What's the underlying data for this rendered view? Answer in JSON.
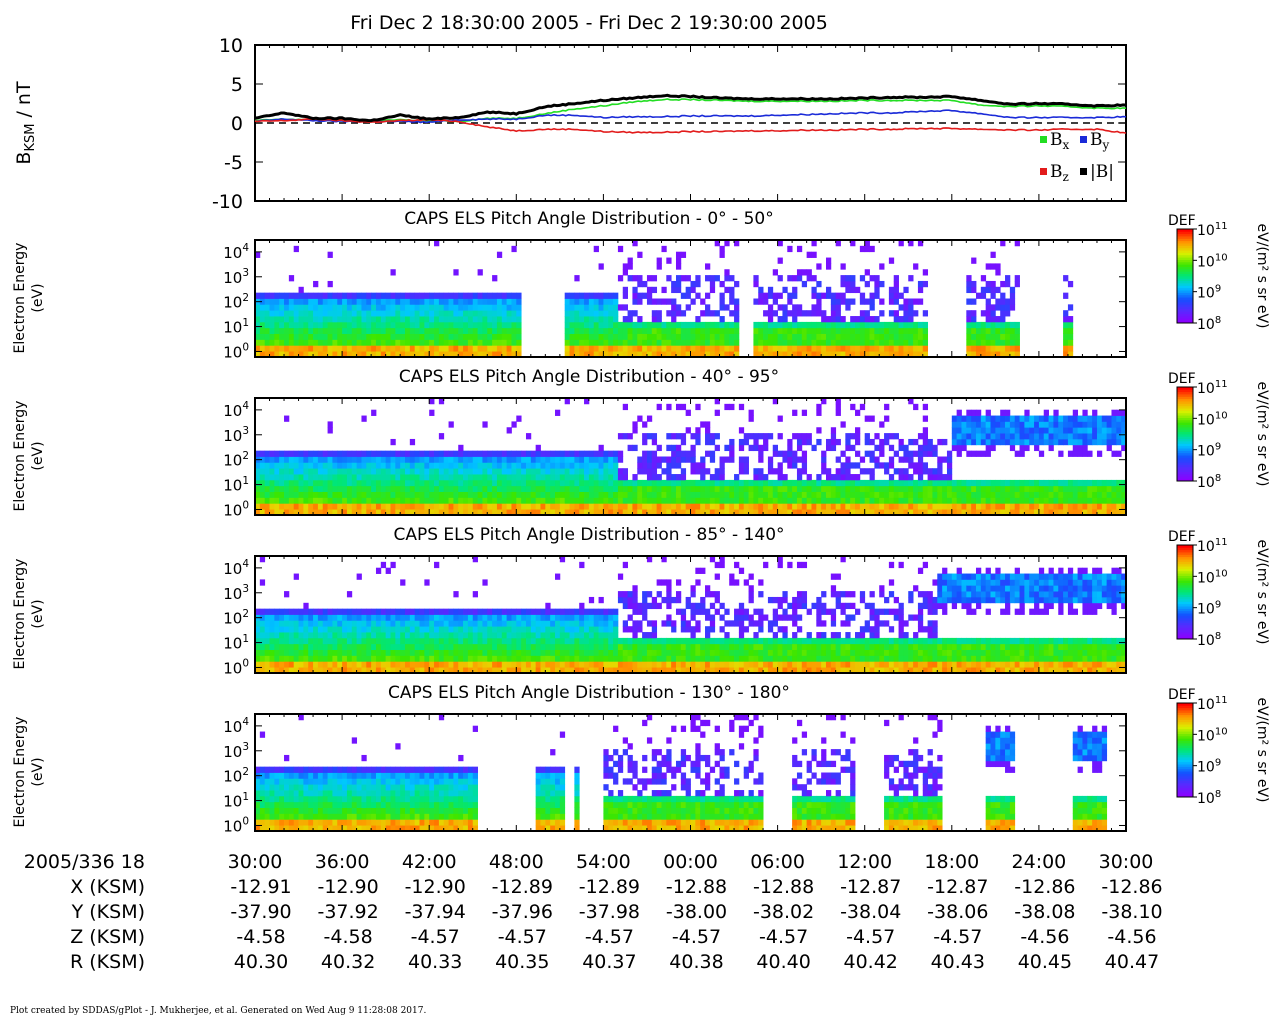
{
  "page_title": "Fri Dec 2 18:30:00 2005 - Fri Dec 2 19:30:00 2005",
  "footer_text": "Plot created by SDDAS/gPlot - J. Mukherjee, et al.  Generated on Wed Aug 9 11:28:08 2017.",
  "colors": {
    "bx": "#22dd22",
    "by": "#1a2ad8",
    "bz": "#e21b1b",
    "bmag": "#000000"
  },
  "chart_data": [
    {
      "type": "line",
      "ylabel_main": "B",
      "ylabel_sub": "KSM",
      "ylabel_unit": " / nT",
      "ylim": [
        -10,
        10
      ],
      "y_ticks": [
        "10",
        "5",
        "0",
        "-5",
        "-10"
      ],
      "y_tick_values": [
        10,
        5,
        0,
        -5,
        -10
      ],
      "x": [
        0,
        2,
        4,
        6,
        8,
        10,
        12,
        14,
        16,
        18,
        20,
        22,
        24,
        26,
        28,
        30,
        32,
        34,
        36,
        38,
        40,
        42,
        44,
        46,
        48,
        50,
        52,
        54,
        56,
        58,
        60
      ],
      "xlim": [
        0,
        60
      ],
      "reference_line_y": 0,
      "legend": [
        {
          "sym": "B",
          "sub": "x",
          "color_key": "bx"
        },
        {
          "sym": "B",
          "sub": "y",
          "color_key": "by"
        },
        {
          "sym": "B",
          "sub": "z",
          "color_key": "bz"
        },
        {
          "sym": "|B|",
          "sub": "",
          "color_key": "bmag"
        }
      ],
      "series": [
        {
          "color_key": "bx",
          "values": [
            0.3,
            0.5,
            0.4,
            0.4,
            0.3,
            0.4,
            0.3,
            0.2,
            0.6,
            0.6,
            1.2,
            1.8,
            2.2,
            2.7,
            3.0,
            3.0,
            2.9,
            2.8,
            2.8,
            2.8,
            2.8,
            2.9,
            2.9,
            2.9,
            2.9,
            2.3,
            2.1,
            2.2,
            2.1,
            1.9,
            1.9
          ]
        },
        {
          "color_key": "by",
          "values": [
            0.2,
            0.5,
            0.3,
            0.2,
            0.2,
            0.2,
            0.1,
            0.4,
            0.5,
            0.5,
            1.0,
            1.0,
            0.7,
            0.8,
            0.8,
            0.9,
            0.9,
            0.9,
            1.0,
            1.1,
            1.2,
            1.3,
            1.3,
            1.5,
            1.6,
            1.2,
            0.7,
            0.7,
            0.7,
            0.7,
            0.8
          ]
        },
        {
          "color_key": "bz",
          "values": [
            0.2,
            0.3,
            0.5,
            0.3,
            0.1,
            0.3,
            0.4,
            0.2,
            -0.5,
            -1.0,
            -0.8,
            -0.8,
            -1.1,
            -1.2,
            -1.2,
            -1.1,
            -1.1,
            -1.0,
            -1.0,
            -0.9,
            -0.9,
            -0.8,
            -0.8,
            -0.7,
            -0.7,
            -0.8,
            -0.9,
            -0.9,
            -0.8,
            -0.8,
            -1.3
          ]
        },
        {
          "color_key": "bmag",
          "values": [
            0.6,
            1.3,
            0.6,
            0.6,
            0.3,
            1.0,
            0.5,
            0.7,
            1.4,
            1.2,
            2.1,
            2.5,
            2.9,
            3.2,
            3.5,
            3.4,
            3.2,
            3.1,
            3.1,
            3.1,
            3.1,
            3.2,
            3.3,
            3.3,
            3.4,
            2.9,
            2.4,
            2.5,
            2.4,
            2.2,
            2.3
          ]
        }
      ]
    },
    {
      "type": "heatmap",
      "title": "CAPS ELS Pitch Angle Distribution - 0° - 50°",
      "ylabel": "Electron Energy",
      "yunit": "(eV)",
      "y_scale": "log",
      "ylim": [
        0.6,
        30000
      ],
      "y_tick_exponents": [
        "0",
        "1",
        "2",
        "3",
        "4"
      ],
      "colorbar": {
        "title": "DEF",
        "unit": "eV/(m² s sr eV)",
        "tick_exponents": [
          "8",
          "9",
          "10",
          "11"
        ],
        "scale": "log",
        "range": [
          100000000.0,
          100000000000.0
        ]
      },
      "gaps_minutes": [
        [
          18.5,
          21.5
        ],
        [
          33.2,
          34.2
        ],
        [
          46.5,
          49.0
        ],
        [
          52.6,
          55.6
        ]
      ],
      "segments": [
        {
          "from": 0,
          "to": 18.5,
          "profile": "quiet"
        },
        {
          "from": 21.5,
          "to": 25,
          "profile": "quiet"
        },
        {
          "from": 25,
          "to": 33.2,
          "profile": "active"
        },
        {
          "from": 34.2,
          "to": 46.5,
          "profile": "active"
        },
        {
          "from": 49.0,
          "to": 52.6,
          "profile": "active"
        },
        {
          "from": 55.6,
          "to": 56.2,
          "profile": "active"
        }
      ]
    },
    {
      "type": "heatmap",
      "title": "CAPS ELS Pitch Angle Distribution - 40° - 95°",
      "ylabel": "Electron Energy",
      "yunit": "(eV)",
      "y_scale": "log",
      "ylim": [
        0.6,
        30000
      ],
      "y_tick_exponents": [
        "0",
        "1",
        "2",
        "3",
        "4"
      ],
      "colorbar": {
        "title": "DEF",
        "unit": "eV/(m² s sr eV)",
        "tick_exponents": [
          "8",
          "9",
          "10",
          "11"
        ],
        "scale": "log",
        "range": [
          100000000.0,
          100000000000.0
        ]
      },
      "gaps_minutes": [],
      "segments": [
        {
          "from": 0,
          "to": 25,
          "profile": "quiet"
        },
        {
          "from": 25,
          "to": 48,
          "profile": "active"
        },
        {
          "from": 48,
          "to": 60,
          "profile": "hot"
        }
      ]
    },
    {
      "type": "heatmap",
      "title": "CAPS ELS Pitch Angle Distribution - 85° - 140°",
      "ylabel": "Electron Energy",
      "yunit": "(eV)",
      "y_scale": "log",
      "ylim": [
        0.6,
        30000
      ],
      "y_tick_exponents": [
        "0",
        "1",
        "2",
        "3",
        "4"
      ],
      "colorbar": {
        "title": "DEF",
        "unit": "eV/(m² s sr eV)",
        "tick_exponents": [
          "8",
          "9",
          "10",
          "11"
        ],
        "scale": "log",
        "range": [
          100000000.0,
          100000000000.0
        ]
      },
      "gaps_minutes": [],
      "segments": [
        {
          "from": 0,
          "to": 25,
          "profile": "quiet"
        },
        {
          "from": 25,
          "to": 47,
          "profile": "active"
        },
        {
          "from": 47,
          "to": 60,
          "profile": "hot"
        }
      ]
    },
    {
      "type": "heatmap",
      "title": "CAPS ELS Pitch Angle Distribution - 130° - 180°",
      "ylabel": "Electron Energy",
      "yunit": "(eV)",
      "y_scale": "log",
      "ylim": [
        0.6,
        30000
      ],
      "y_tick_exponents": [
        "0",
        "1",
        "2",
        "3",
        "4"
      ],
      "colorbar": {
        "title": "DEF",
        "unit": "eV/(m² s sr eV)",
        "tick_exponents": [
          "8",
          "9",
          "10",
          "11"
        ],
        "scale": "log",
        "range": [
          100000000.0,
          100000000000.0
        ]
      },
      "gaps_minutes": [
        [
          15.5,
          19.5
        ],
        [
          21.4,
          22.0
        ],
        [
          22.3,
          24.0
        ],
        [
          35.1,
          37.0
        ],
        [
          41.4,
          43.5
        ],
        [
          47.3,
          50.3
        ],
        [
          52.2,
          56.4
        ],
        [
          58.7,
          60.0
        ]
      ],
      "segments": [
        {
          "from": 0,
          "to": 15.5,
          "profile": "quiet"
        },
        {
          "from": 19.5,
          "to": 21.4,
          "profile": "quiet"
        },
        {
          "from": 22.0,
          "to": 22.3,
          "profile": "quiet"
        },
        {
          "from": 24.0,
          "to": 35.1,
          "profile": "active"
        },
        {
          "from": 37.0,
          "to": 41.4,
          "profile": "active"
        },
        {
          "from": 43.5,
          "to": 47.3,
          "profile": "active"
        },
        {
          "from": 50.3,
          "to": 52.2,
          "profile": "hot"
        },
        {
          "from": 56.4,
          "to": 58.7,
          "profile": "hot"
        }
      ]
    }
  ],
  "ephemeris": {
    "date_label": "2005/336 18",
    "times": [
      "30:00",
      "36:00",
      "42:00",
      "48:00",
      "54:00",
      "00:00",
      "06:00",
      "12:00",
      "18:00",
      "24:00",
      "30:00"
    ],
    "rows": [
      {
        "label": "X (KSM)",
        "values": [
          "-12.91",
          "-12.90",
          "-12.90",
          "-12.89",
          "-12.89",
          "-12.88",
          "-12.88",
          "-12.87",
          "-12.87",
          "-12.86",
          "-12.86"
        ]
      },
      {
        "label": "Y (KSM)",
        "values": [
          "-37.90",
          "-37.92",
          "-37.94",
          "-37.96",
          "-37.98",
          "-38.00",
          "-38.02",
          "-38.04",
          "-38.06",
          "-38.08",
          "-38.10"
        ]
      },
      {
        "label": "Z (KSM)",
        "values": [
          "-4.58",
          "-4.58",
          "-4.57",
          "-4.57",
          "-4.57",
          "-4.57",
          "-4.57",
          "-4.57",
          "-4.57",
          "-4.56",
          "-4.56"
        ]
      },
      {
        "label": "R (KSM)",
        "values": [
          "40.30",
          "40.32",
          "40.33",
          "40.35",
          "40.37",
          "40.38",
          "40.40",
          "40.42",
          "40.43",
          "40.45",
          "40.47"
        ]
      }
    ]
  }
}
